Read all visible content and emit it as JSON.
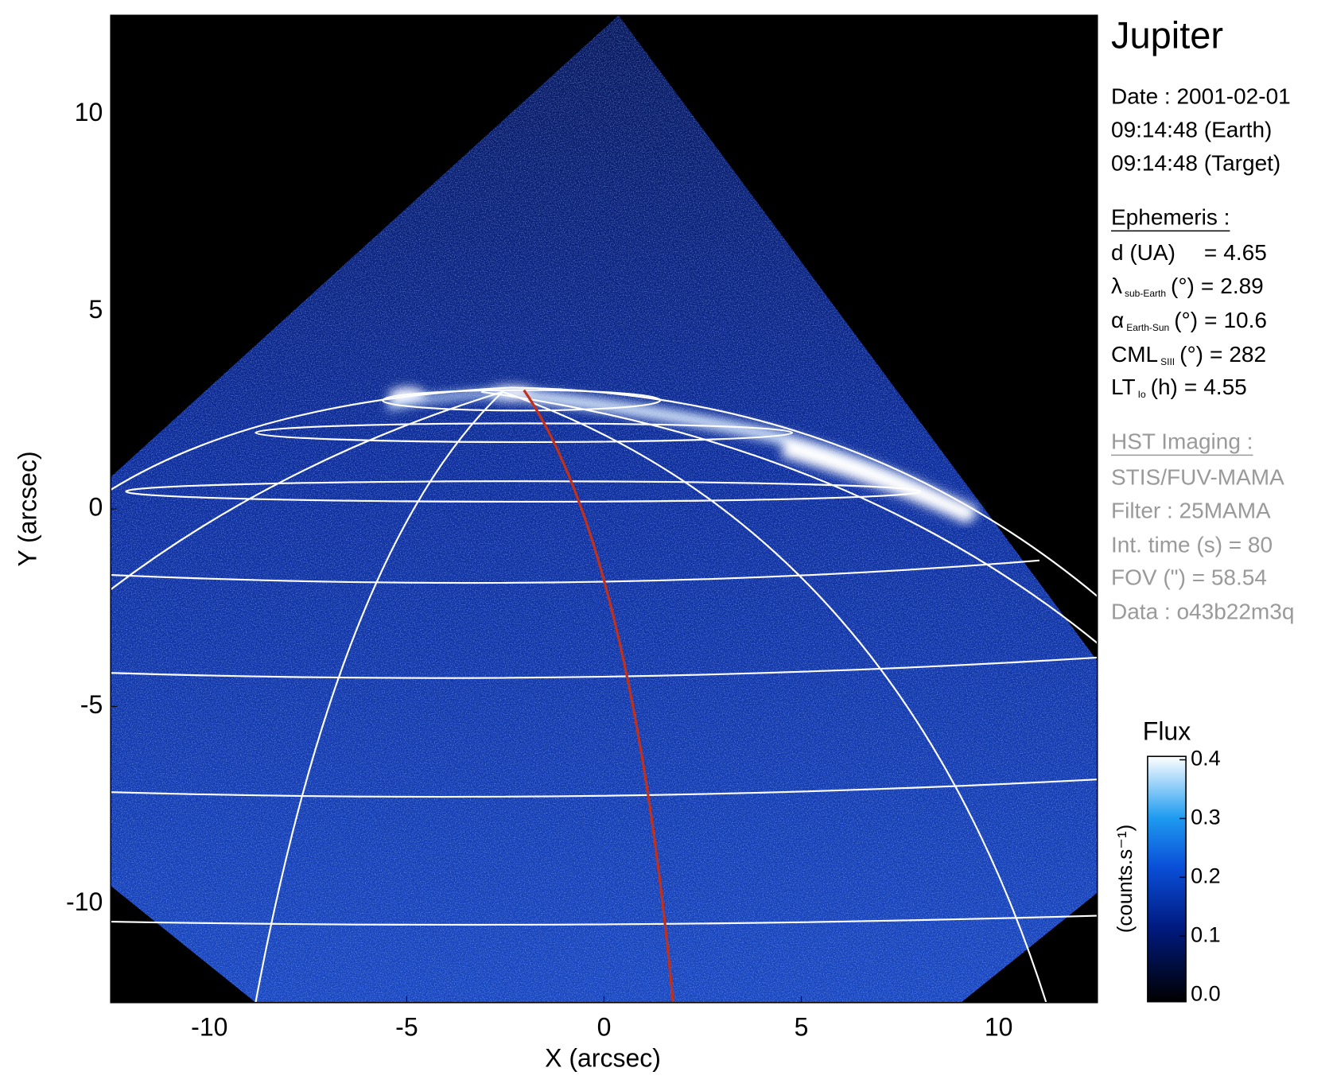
{
  "chart_data": {
    "type": "image",
    "title": "Jupiter",
    "x_label": "X (arcsec)",
    "y_label": "Y (arcsec)",
    "xlim": [
      -12.5,
      12.5
    ],
    "ylim": [
      -12.5,
      12.5
    ],
    "xticks": [
      -10,
      -5,
      0,
      5,
      10
    ],
    "yticks": [
      -10,
      -5,
      0,
      5,
      10
    ],
    "colorbar": {
      "title": "Flux",
      "label": "(counts.s⁻¹)",
      "lim": [
        0,
        0.4
      ],
      "ticks": [
        {
          "value": 0,
          "label": "0.0"
        },
        0.1,
        0.2,
        0.3,
        0.4
      ]
    }
  },
  "info": {
    "date": "Date : 2001-02-01",
    "time_earth": "09:14:48 (Earth)",
    "time_target": "09:14:48 (Target)",
    "ephemeris_title": "Ephemeris :",
    "ephemeris": [
      {
        "name": "d (UA)",
        "sign": "=",
        "value": 4.65
      },
      {
        "name": "λ",
        "sub": "sub-Earth",
        "unit": "(°)",
        "sign": "=",
        "value": 2.89
      },
      {
        "name": "α",
        "sub": "Earth-Sun",
        "unit": "(°)",
        "sign": "=",
        "value": 10.6
      },
      {
        "name": "CML",
        "sub": "SIII",
        "unit": "(°)",
        "sign": "=",
        "value": 282
      },
      {
        "name": "LT",
        "sub": "Io",
        "unit": "(h)",
        "sign": "=",
        "value": 4.55
      }
    ],
    "imaging_title": "HST Imaging :",
    "imaging": [
      "STIS/FUV-MAMA",
      "Filter : 25MAMA",
      "Int. time (s) = 80",
      "FOV (\") = 58.54",
      "Data : o43b22m3q"
    ]
  }
}
